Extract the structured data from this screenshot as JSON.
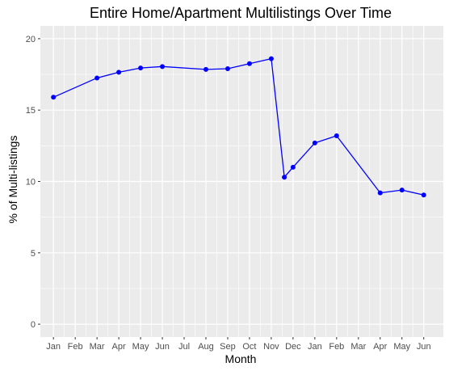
{
  "chart_data": {
    "type": "line",
    "title": "Entire Home/Apartment Multilistings Over Time",
    "xlabel": "Month",
    "ylabel": "% of Multi-listings",
    "ylim": [
      -0.9,
      20.9
    ],
    "y_ticks": [
      0,
      5,
      10,
      15,
      20
    ],
    "x_ticks": [
      {
        "label": "Jan",
        "x": 0
      },
      {
        "label": "Feb",
        "x": 1
      },
      {
        "label": "Mar",
        "x": 2
      },
      {
        "label": "Apr",
        "x": 3
      },
      {
        "label": "May",
        "x": 4
      },
      {
        "label": "Jun",
        "x": 5
      },
      {
        "label": "Jul",
        "x": 6
      },
      {
        "label": "Aug",
        "x": 7
      },
      {
        "label": "Sep",
        "x": 8
      },
      {
        "label": "Oct",
        "x": 9
      },
      {
        "label": "Nov",
        "x": 10
      },
      {
        "label": "Dec",
        "x": 11
      },
      {
        "label": "Jan",
        "x": 12
      },
      {
        "label": "Feb",
        "x": 13
      },
      {
        "label": "Mar",
        "x": 14
      },
      {
        "label": "Apr",
        "x": 15
      },
      {
        "label": "May",
        "x": 16
      },
      {
        "label": "Jun",
        "x": 17
      }
    ],
    "xlim": [
      -0.6,
      17.9
    ],
    "series": [
      {
        "color": "#0000ff",
        "points": [
          {
            "x": 0,
            "y": 15.9
          },
          {
            "x": 2,
            "y": 17.25
          },
          {
            "x": 3,
            "y": 17.65
          },
          {
            "x": 4,
            "y": 17.95
          },
          {
            "x": 5,
            "y": 18.05
          },
          {
            "x": 7,
            "y": 17.85
          },
          {
            "x": 8,
            "y": 17.9
          },
          {
            "x": 9,
            "y": 18.25
          },
          {
            "x": 10,
            "y": 18.6
          },
          {
            "x": 10.6,
            "y": 10.3
          },
          {
            "x": 11,
            "y": 11.0
          },
          {
            "x": 12,
            "y": 12.7
          },
          {
            "x": 13,
            "y": 13.2
          },
          {
            "x": 15,
            "y": 9.2
          },
          {
            "x": 16,
            "y": 9.4
          },
          {
            "x": 17,
            "y": 9.05
          }
        ]
      }
    ],
    "grid": true,
    "panel_background": "#ebebeb",
    "gridline_color": "#ffffff"
  }
}
